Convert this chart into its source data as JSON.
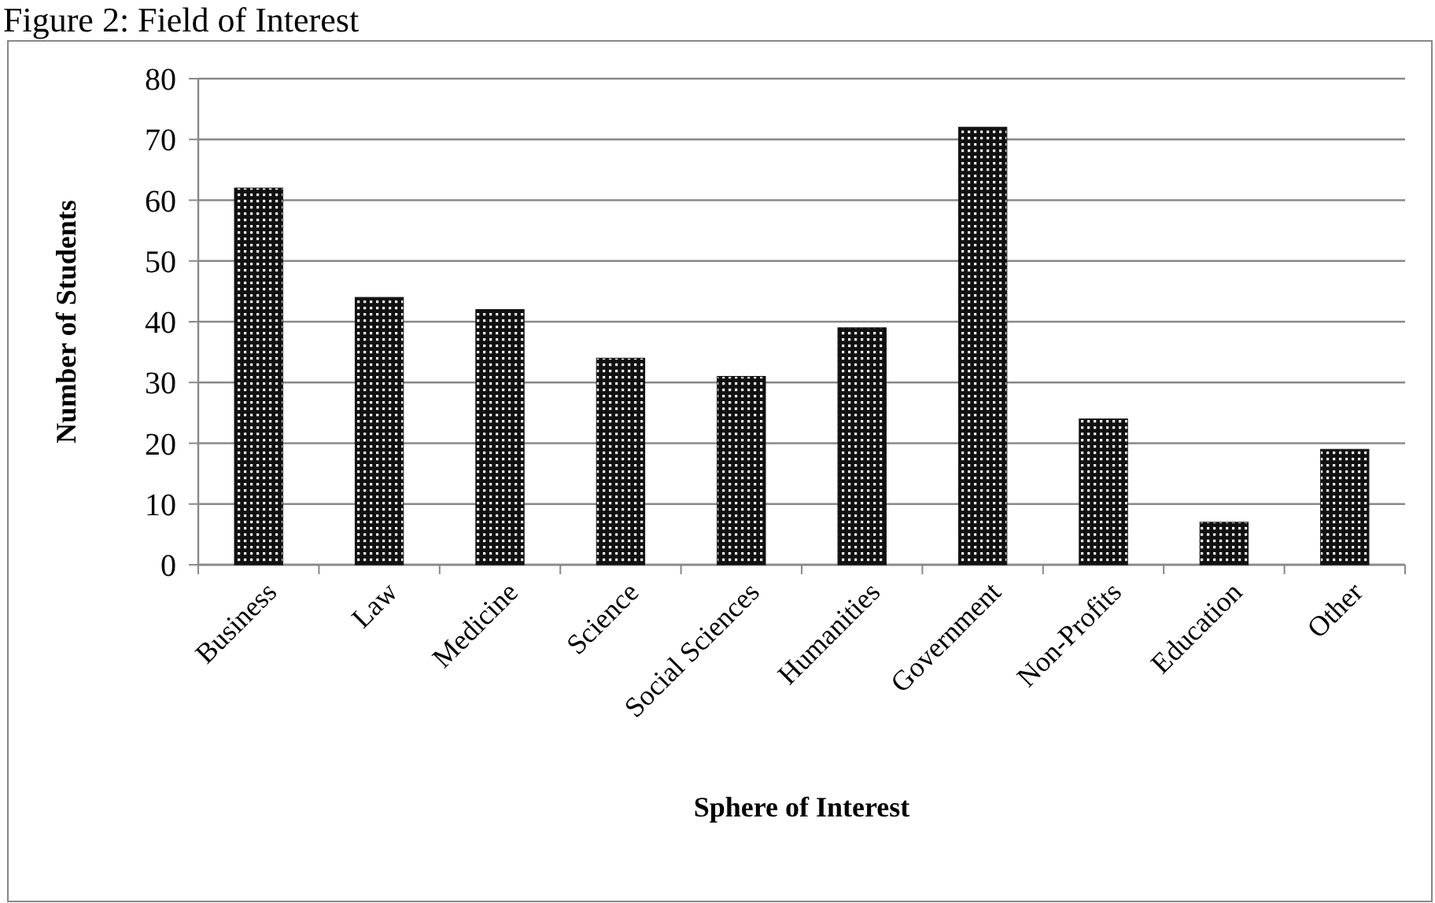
{
  "chart_data": {
    "type": "bar",
    "title": "Figure 2: Field of Interest",
    "xlabel": "Sphere of Interest",
    "ylabel": "Number of Students",
    "categories": [
      "Business",
      "Law",
      "Medicine",
      "Science",
      "Social Sciences",
      "Humanities",
      "Government",
      "Non-Profits",
      "Education",
      "Other"
    ],
    "values": [
      62,
      44,
      42,
      34,
      31,
      39,
      72,
      24,
      7,
      19
    ],
    "color": "#111111",
    "ylim": [
      0,
      80
    ],
    "yticks": [
      0,
      10,
      20,
      30,
      40,
      50,
      60,
      70,
      80
    ],
    "grid": "y"
  }
}
